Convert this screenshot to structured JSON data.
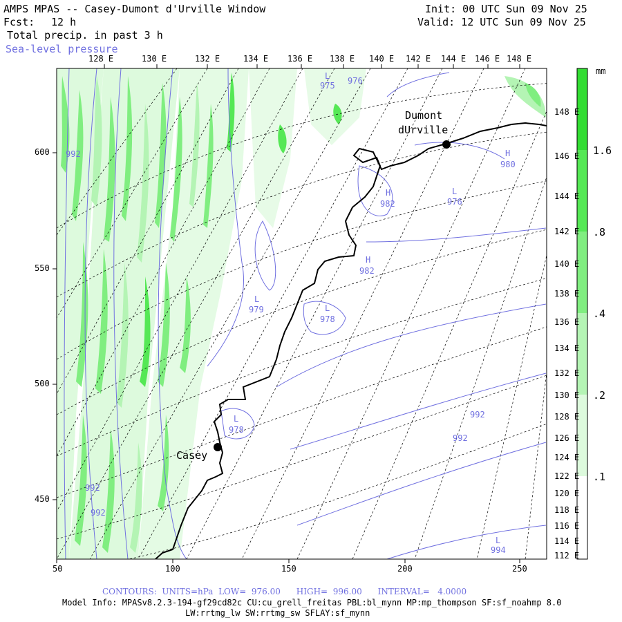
{
  "header": {
    "title": "AMPS MPAS -- Casey-Dumont d'Urville Window",
    "forecast_label": "Fcst:",
    "forecast_hours": "12 h",
    "init": "Init: 00 UTC Sun 09 Nov 25",
    "valid": "Valid: 12 UTC Sun 09 Nov 25",
    "field": "Total precip. in past 3 h",
    "overlay": "Sea-level pressure"
  },
  "top_axis_ticks": [
    "128 E",
    "130 E",
    "132 E",
    "134 E",
    "136 E",
    "138 E",
    "140 E",
    "142 E",
    "144 E",
    "146 E",
    "148 E"
  ],
  "right_axis_ticks": [
    "148 E",
    "146 E",
    "144 E",
    "142 E",
    "140 E",
    "138 E",
    "136 E",
    "134 E",
    "132 E",
    "130 E",
    "128 E",
    "126 E",
    "124 E",
    "122 E",
    "120 E",
    "118 E",
    "116 E",
    "114 E",
    "112 E"
  ],
  "x_axis_ticks": [
    "50",
    "100",
    "150",
    "200",
    "250"
  ],
  "y_axis_ticks": [
    "600",
    "550",
    "500",
    "450"
  ],
  "colorbar": {
    "units": "mm",
    "labels": [
      "1.6",
      ".8",
      ".4",
      ".2",
      ".1"
    ],
    "colors": [
      "#33dd33",
      "#55e855",
      "#80ee80",
      "#b4f4b4",
      "#ddfadd"
    ]
  },
  "stations": [
    {
      "name_line1": "Dumont",
      "name_line2": "dUrville"
    },
    {
      "name_line1": "Casey"
    }
  ],
  "pressure_labels": [
    {
      "sym": "L",
      "val": "975"
    },
    {
      "sym": "",
      "val": "976"
    },
    {
      "sym": "",
      "val": "992"
    },
    {
      "sym": "H",
      "val": "980"
    },
    {
      "sym": "H",
      "val": "982"
    },
    {
      "sym": "L",
      "val": "976"
    },
    {
      "sym": "H",
      "val": "982"
    },
    {
      "sym": "L",
      "val": "979"
    },
    {
      "sym": "L",
      "val": "978"
    },
    {
      "sym": "L",
      "val": "978"
    },
    {
      "sym": "",
      "val": "992"
    },
    {
      "sym": "",
      "val": "992"
    },
    {
      "sym": "",
      "val": "992"
    },
    {
      "sym": "",
      "val": "992"
    },
    {
      "sym": "L",
      "val": "994"
    }
  ],
  "footer": {
    "contours": "CONTOURS:  UNITS=hPa  LOW=  976.00      HIGH=  996.00      INTERVAL=   4.0000",
    "model_info": "Model Info: MPASv8.2.3-194-gf29cd82c CU:cu_grell_freitas PBL:bl_mynn MP:mp_thompson SF:sf_noahmp 8.0",
    "model_info2": "LW:rrtmg_lw SW:rrtmg_sw SFLAY:sf_mynn"
  }
}
